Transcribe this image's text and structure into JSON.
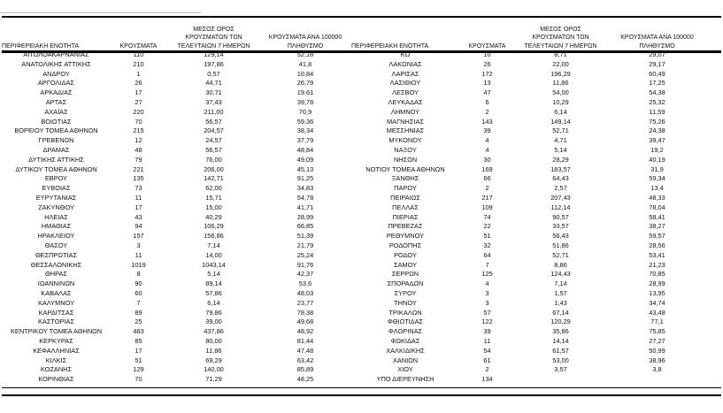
{
  "accent_colors": {
    "text": "#111111",
    "border": "#000000"
  },
  "headers": {
    "region": [
      "ΠΕΡΙΦΕΡΕΙΑΚΗ ΕΝΟΤΗΤΑ"
    ],
    "cases": [
      "ΚΡΟΥΣΜΑΤΑ"
    ],
    "avg7": [
      "ΜΕΣΟΣ ΟΡΟΣ",
      "ΚΡΟΥΣΜΑΤΩΝ ΤΩΝ",
      "ΤΕΛΕΥΤΑΙΩΝ 7 ΗΜΕΡΩΝ"
    ],
    "per100k": [
      "ΚΡΟΥΣΜΑΤΑ ΑΝΑ 100000",
      "ΠΛΗΘΥΣΜΟ"
    ]
  },
  "left_table": {
    "rows": [
      [
        "ΑΙΤΩΛΟΑΚΑΡΝΑΝΙΑΣ",
        "110",
        "129,14",
        "52,18"
      ],
      [
        "ΑΝΑΤΟΛΙΚΗΣ ΑΤΤΙΚΗΣ",
        "210",
        "197,86",
        "41,8"
      ],
      [
        "ΑΝΔΡΟΥ",
        "1",
        "0,57",
        "10,84"
      ],
      [
        "ΑΡΓΟΛΙΔΑΣ",
        "26",
        "44,71",
        "26,79"
      ],
      [
        "ΑΡΚΑΔΙΑΣ",
        "17",
        "30,71",
        "19,61"
      ],
      [
        "ΑΡΤΑΣ",
        "27",
        "37,43",
        "39,78"
      ],
      [
        "ΑΧΑΪΑΣ",
        "220",
        "211,00",
        "70,9"
      ],
      [
        "ΒΟΙΩΤΙΑΣ",
        "70",
        "56,57",
        "59,36"
      ],
      [
        "ΒΟΡΕΙΟΥ ΤΟΜΕΑ ΑΘΗΝΩΝ",
        "215",
        "204,57",
        "38,34"
      ],
      [
        "ΓΡΕΒΕΝΩΝ",
        "12",
        "24,57",
        "37,79"
      ],
      [
        "ΔΡΑΜΑΣ",
        "48",
        "56,57",
        "48,84"
      ],
      [
        "ΔΥΤΙΚΗΣ ΑΤΤΙΚΗΣ",
        "79",
        "76,00",
        "49,09"
      ],
      [
        "ΔΥΤΙΚΟΥ ΤΟΜΕΑ ΑΘΗΝΩΝ",
        "221",
        "206,00",
        "45,13"
      ],
      [
        "ΕΒΡΟΥ",
        "135",
        "142,71",
        "91,25"
      ],
      [
        "ΕΥΒΟΙΑΣ",
        "73",
        "62,00",
        "34,83"
      ],
      [
        "ΕΥΡΥΤΑΝΙΑΣ",
        "11",
        "15,71",
        "54,78"
      ],
      [
        "ΖΑΚΥΝΘΟΥ",
        "17",
        "15,00",
        "41,71"
      ],
      [
        "ΗΛΕΙΑΣ",
        "43",
        "40,29",
        "28,99"
      ],
      [
        "ΗΜΑΘΙΑΣ",
        "94",
        "106,29",
        "66,85"
      ],
      [
        "ΗΡΑΚΛΕΙΟΥ",
        "157",
        "156,86",
        "51,39"
      ],
      [
        "ΘΑΣΟΥ",
        "3",
        "7,14",
        "21,79"
      ],
      [
        "ΘΕΣΠΡΩΤΙΑΣ",
        "11",
        "14,00",
        "25,24"
      ],
      [
        "ΘΕΣΣΑΛΟΝΙΚΗΣ",
        "1019",
        "1043,14",
        "91,76"
      ],
      [
        "ΘΗΡΑΣ",
        "8",
        "5,14",
        "42,37"
      ],
      [
        "ΙΩΑΝΝΙΝΩΝ",
        "90",
        "89,14",
        "53,6"
      ],
      [
        "ΚΑΒΑΛΑΣ",
        "60",
        "57,86",
        "48,03"
      ],
      [
        "ΚΑΛΥΜΝΟΥ",
        "7",
        "6,14",
        "23,77"
      ],
      [
        "ΚΑΡΔΙΤΣΑΣ",
        "89",
        "79,86",
        "78,38"
      ],
      [
        "ΚΑΣΤΟΡΙΑΣ",
        "25",
        "39,00",
        "49,68"
      ],
      [
        "ΚΕΝΤΡΙΚΟΥ ΤΟΜΕΑ ΑΘΗΝΩΝ",
        "483",
        "437,86",
        "48,92"
      ],
      [
        "ΚΕΡΚΥΡΑΣ",
        "85",
        "80,00",
        "81,44"
      ],
      [
        "ΚΕΦΑΛΛΗΝΙΑΣ",
        "17",
        "11,86",
        "47,48"
      ],
      [
        "ΚΙΛΚΙΣ",
        "51",
        "69,29",
        "63,42"
      ],
      [
        "ΚΟΖΑΝΗΣ",
        "129",
        "140,00",
        "85,89"
      ],
      [
        "ΚΟΡΙΝΘΙΑΣ",
        "70",
        "71,29",
        "48,25"
      ]
    ]
  },
  "right_table": {
    "rows": [
      [
        "ΚΩ",
        "10",
        "8,71",
        "29,07"
      ],
      [
        "ΛΑΚΩΝΙΑΣ",
        "26",
        "22,00",
        "29,17"
      ],
      [
        "ΛΑΡΙΣΑΣ",
        "172",
        "196,29",
        "60,49"
      ],
      [
        "ΛΑΣΙΘΙΟΥ",
        "13",
        "11,86",
        "17,25"
      ],
      [
        "ΛΕΣΒΟΥ",
        "47",
        "54,00",
        "54,38"
      ],
      [
        "ΛΕΥΚΑΔΑΣ",
        "6",
        "10,29",
        "25,32"
      ],
      [
        "ΛΗΜΝΟΥ",
        "2",
        "6,14",
        "11,59"
      ],
      [
        "ΜΑΓΝΗΣΙΑΣ",
        "143",
        "149,14",
        "75,26"
      ],
      [
        "ΜΕΣΣΗΝΙΑΣ",
        "39",
        "52,71",
        "24,38"
      ],
      [
        "ΜΥΚΟΝΟΥ",
        "4",
        "4,71",
        "39,47"
      ],
      [
        "ΝΑΞΟΥ",
        "4",
        "5,14",
        "19,2"
      ],
      [
        "ΝΗΣΩΝ",
        "30",
        "28,29",
        "40,19"
      ],
      [
        "ΝΟΤΙΟΥ ΤΟΜΕΑ ΑΘΗΝΩΝ",
        "169",
        "183,57",
        "31,9"
      ],
      [
        "ΞΑΝΘΗΣ",
        "66",
        "64,43",
        "59,34"
      ],
      [
        "ΠΑΡΟΥ",
        "2",
        "2,57",
        "13,4"
      ],
      [
        "ΠΕΙΡΑΙΩΣ",
        "217",
        "207,43",
        "48,33"
      ],
      [
        "ΠΕΛΛΑΣ",
        "109",
        "112,14",
        "78,04"
      ],
      [
        "ΠΙΕΡΙΑΣ",
        "74",
        "90,57",
        "58,41"
      ],
      [
        "ΠΡΕΒΕΖΑΣ",
        "22",
        "33,57",
        "38,27"
      ],
      [
        "ΡΕΘΥΜΝΟΥ",
        "51",
        "56,43",
        "59,57"
      ],
      [
        "ΡΟΔΟΠΗΣ",
        "32",
        "51,86",
        "28,56"
      ],
      [
        "ΡΟΔΟΥ",
        "64",
        "52,71",
        "53,41"
      ],
      [
        "ΣΑΜΟΥ",
        "7",
        "8,86",
        "21,23"
      ],
      [
        "ΣΕΡΡΩΝ",
        "125",
        "124,43",
        "70,85"
      ],
      [
        "ΣΠΟΡΑΔΩΝ",
        "4",
        "7,14",
        "28,99"
      ],
      [
        "ΣΥΡΟΥ",
        "3",
        "1,57",
        "13,95"
      ],
      [
        "ΤΗΝΟΥ",
        "3",
        "1,43",
        "34,74"
      ],
      [
        "ΤΡΙΚΑΛΩΝ",
        "57",
        "67,14",
        "43,48"
      ],
      [
        "ΦΘΙΩΤΙΔΑΣ",
        "122",
        "120,29",
        "77,1"
      ],
      [
        "ΦΛΩΡΙΝΑΣ",
        "39",
        "35,86",
        "75,85"
      ],
      [
        "ΦΩΚΙΔΑΣ",
        "11",
        "14,14",
        "27,27"
      ],
      [
        "ΧΑΛΚΙΔΙΚΗΣ",
        "54",
        "61,57",
        "50,99"
      ],
      [
        "ΧΑΝΙΩΝ",
        "61",
        "53,00",
        "38,96"
      ],
      [
        "ΧΙΟΥ",
        "2",
        "3,57",
        "3,8"
      ],
      [
        "ΥΠΟ ΔΙΕΡΕΥΝΗΣΗ",
        "134",
        "",
        ""
      ]
    ]
  }
}
